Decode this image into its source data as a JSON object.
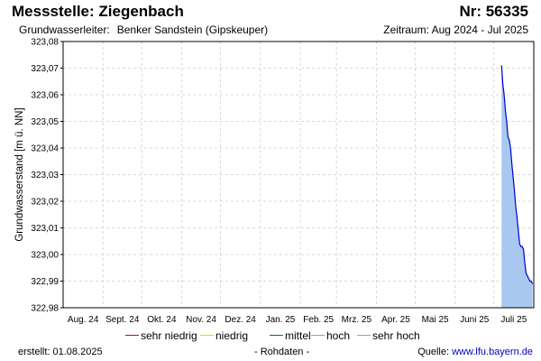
{
  "header": {
    "title": "Messstelle: Ziegenbach",
    "number": "Nr: 56335",
    "aquifer_label": "Grundwasserleiter:",
    "aquifer_value": "Benker Sandstein (Gipskeuper)",
    "period": "Zeitraum: Aug 2024 - Jul 2025"
  },
  "legend": {
    "items": [
      {
        "label": "sehr niedrig",
        "color": "#e00000"
      },
      {
        "label": "niedrig",
        "color": "#f0d000"
      },
      {
        "label": "mittel",
        "color": "#008000"
      },
      {
        "label": "hoch",
        "color": "#a0a0a0"
      },
      {
        "label": "sehr hoch",
        "color": "#a0a0a0"
      }
    ]
  },
  "footer": {
    "created": "erstellt:  01.08.2025",
    "raw": "- Rohdaten -",
    "source_label": "Quelle:",
    "source_link": "www.lfu.bayern.de"
  },
  "chart_data": {
    "type": "area",
    "title": "",
    "xlabel": "",
    "ylabel": "Grundwasserstand [m ü. NN]",
    "ylim": [
      322.98,
      323.08
    ],
    "yticks": [
      "323,08",
      "323,07",
      "323,06",
      "323,05",
      "323,04",
      "323,03",
      "323,02",
      "323,01",
      "323,00",
      "322,99",
      "322,98"
    ],
    "xticks": [
      "Aug. 24",
      "Sept. 24",
      "Okt. 24",
      "Nov. 24",
      "Dez. 24",
      "Jan. 25",
      "Feb. 25",
      "Mrz. 25",
      "Apr. 25",
      "Mai 25",
      "Juni 25",
      "Juli 25"
    ],
    "grid": true,
    "line_color": "#0000cc",
    "fill_color": "#a8c8f0",
    "series": [
      {
        "x": [
          "2025-07-07",
          "2025-07-08",
          "2025-07-09",
          "2025-07-10",
          "2025-07-11",
          "2025-07-12",
          "2025-07-13",
          "2025-07-14",
          "2025-07-15",
          "2025-07-16",
          "2025-07-17",
          "2025-07-18",
          "2025-07-19",
          "2025-07-20",
          "2025-07-21",
          "2025-07-22",
          "2025-07-23",
          "2025-07-24",
          "2025-07-25",
          "2025-07-26",
          "2025-07-27",
          "2025-07-28",
          "2025-07-29",
          "2025-07-30",
          "2025-07-31"
        ],
        "values": [
          323.071,
          323.064,
          323.06,
          323.054,
          323.05,
          323.044,
          323.043,
          323.04,
          323.034,
          323.029,
          323.024,
          323.018,
          323.014,
          323.009,
          323.004,
          323.003,
          323.003,
          323.002,
          322.997,
          322.993,
          322.992,
          322.991,
          322.99,
          322.99,
          322.989
        ]
      }
    ]
  }
}
